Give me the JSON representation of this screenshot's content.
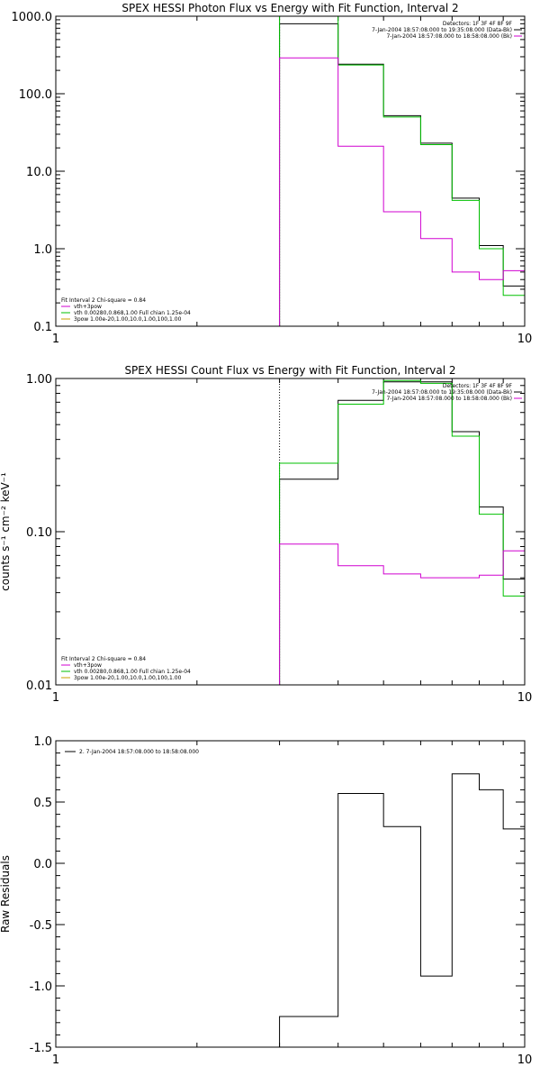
{
  "chart_data": [
    {
      "type": "line",
      "title": "SPEX HESSI Photon Flux vs Energy with Fit Function, Interval 2",
      "xlabel": "",
      "ylabel": "",
      "xscale": "log",
      "yscale": "log",
      "xlim": [
        1,
        10
      ],
      "ylim": [
        0.1,
        1000
      ],
      "x_tick_labels": [
        "1",
        "10"
      ],
      "y_tick_labels": [
        "0.1",
        "1.0",
        "10.0",
        "100.0",
        "1000.0"
      ],
      "grid": false,
      "legend_topright": [
        {
          "text": "Detectors: 1F 3F 4F 8F 9F",
          "color": "#000000"
        },
        {
          "text": "7-Jan-2004 18:57:08.000 to 19:35:08.000 (Data-Bk)",
          "color": "#000000"
        },
        {
          "text": "7-Jan-2004 18:57:08.000 to 18:58:08.000 (Bk)",
          "color": "#d000d0"
        }
      ],
      "legend_bottomleft": [
        {
          "text": "Fit Interval 2   Chi-square = 0.84",
          "color": "#000000"
        },
        {
          "text": "vth+3pow",
          "color": "#d000d0"
        },
        {
          "text": "vth 0.00280,0.868,1.00   Full chian 1.25e-04",
          "color": "#00c000"
        },
        {
          "text": "3pow 1.00e-20,1.00,10.0,1.00,100,1.00",
          "color": "#c8a000"
        }
      ],
      "bin_edges": [
        3.0,
        4.0,
        5.0,
        6.0,
        7.0,
        8.0,
        9.0,
        10.0
      ],
      "vline_x": 3.0,
      "series": [
        {
          "name": "Data-Bk",
          "color": "#000000",
          "values": [
            800,
            240,
            52,
            23,
            4.5,
            1.1,
            0.33
          ]
        },
        {
          "name": "vth 0.00280,0.868,1.00   Full chian 1.25e-04",
          "color": "#00c000",
          "values": [
            1000,
            235,
            50,
            22,
            4.2,
            1.0,
            0.25
          ]
        },
        {
          "name": "Bk",
          "color": "#d000d0",
          "values": [
            290,
            21,
            3.0,
            1.35,
            0.5,
            0.4,
            0.52
          ]
        }
      ]
    },
    {
      "type": "line",
      "title": "SPEX HESSI Count Flux vs Energy with Fit Function, Interval 2",
      "xlabel": "",
      "ylabel": "counts s⁻¹ cm⁻² keV⁻¹",
      "xscale": "log",
      "yscale": "log",
      "xlim": [
        1,
        10
      ],
      "ylim": [
        0.01,
        1.0
      ],
      "x_tick_labels": [
        "1",
        "10"
      ],
      "y_tick_labels": [
        "0.01",
        "0.10",
        "1.00"
      ],
      "grid": false,
      "legend_topright": [
        {
          "text": "Detectors: 1F 3F 4F 8F 9F",
          "color": "#000000"
        },
        {
          "text": "7-Jan-2004 18:57:08.000 to 19:35:08.000 (Data-Bk)",
          "color": "#000000"
        },
        {
          "text": "7-Jan-2004 18:57:08.000 to 18:58:08.000 (Bk)",
          "color": "#d000d0"
        }
      ],
      "legend_bottomleft": [
        {
          "text": "Fit Interval 2   Chi-square = 0.84",
          "color": "#000000"
        },
        {
          "text": "vth+3pow",
          "color": "#d000d0"
        },
        {
          "text": "vth 0.00280,0.868,1.00   Full chian 1.25e-04",
          "color": "#00c000"
        },
        {
          "text": "3pow 1.00e-20,1.00,10.0,1.00,100,1.00",
          "color": "#c8a000"
        }
      ],
      "bin_edges": [
        3.0,
        4.0,
        5.0,
        6.0,
        7.0,
        8.0,
        9.0,
        10.0
      ],
      "vline_x": 3.0,
      "series": [
        {
          "name": "Data-Bk",
          "color": "#000000",
          "values": [
            0.22,
            0.72,
            0.95,
            0.95,
            0.45,
            0.145,
            0.049
          ]
        },
        {
          "name": "vth 0.00280,0.868,1.00   Full chian 1.25e-04",
          "color": "#00c000",
          "values": [
            0.28,
            0.68,
            0.97,
            0.93,
            0.42,
            0.13,
            0.038
          ]
        },
        {
          "name": "Bk",
          "color": "#d000d0",
          "values": [
            0.083,
            0.06,
            0.053,
            0.05,
            0.05,
            0.052,
            0.075
          ]
        }
      ]
    },
    {
      "type": "line",
      "title": "",
      "xlabel": "",
      "ylabel": "Raw Residuals",
      "xscale": "log",
      "yscale": "linear",
      "xlim": [
        1,
        10
      ],
      "ylim": [
        -1.5,
        1.0
      ],
      "x_tick_labels": [
        "1",
        "10"
      ],
      "y_tick_labels": [
        "-1.5",
        "-1.0",
        "-0.5",
        "0.0",
        "0.5",
        "1.0"
      ],
      "y_ticks": [
        -1.5,
        -1.0,
        -0.5,
        0.0,
        0.5,
        1.0
      ],
      "grid": false,
      "legend_topleft": [
        {
          "text": "2. 7-Jan-2004 18:57:08.000 to 18:58:08.000",
          "color": "#000000"
        }
      ],
      "bin_edges": [
        3.0,
        4.0,
        5.0,
        6.0,
        7.0,
        8.0,
        9.0,
        10.0
      ],
      "series": [
        {
          "name": "2. 7-Jan-2004 18:57:08.000 to 18:58:08.000",
          "color": "#000000",
          "values": [
            -1.25,
            0.57,
            0.3,
            -0.92,
            0.73,
            0.6,
            0.28
          ]
        }
      ]
    }
  ]
}
